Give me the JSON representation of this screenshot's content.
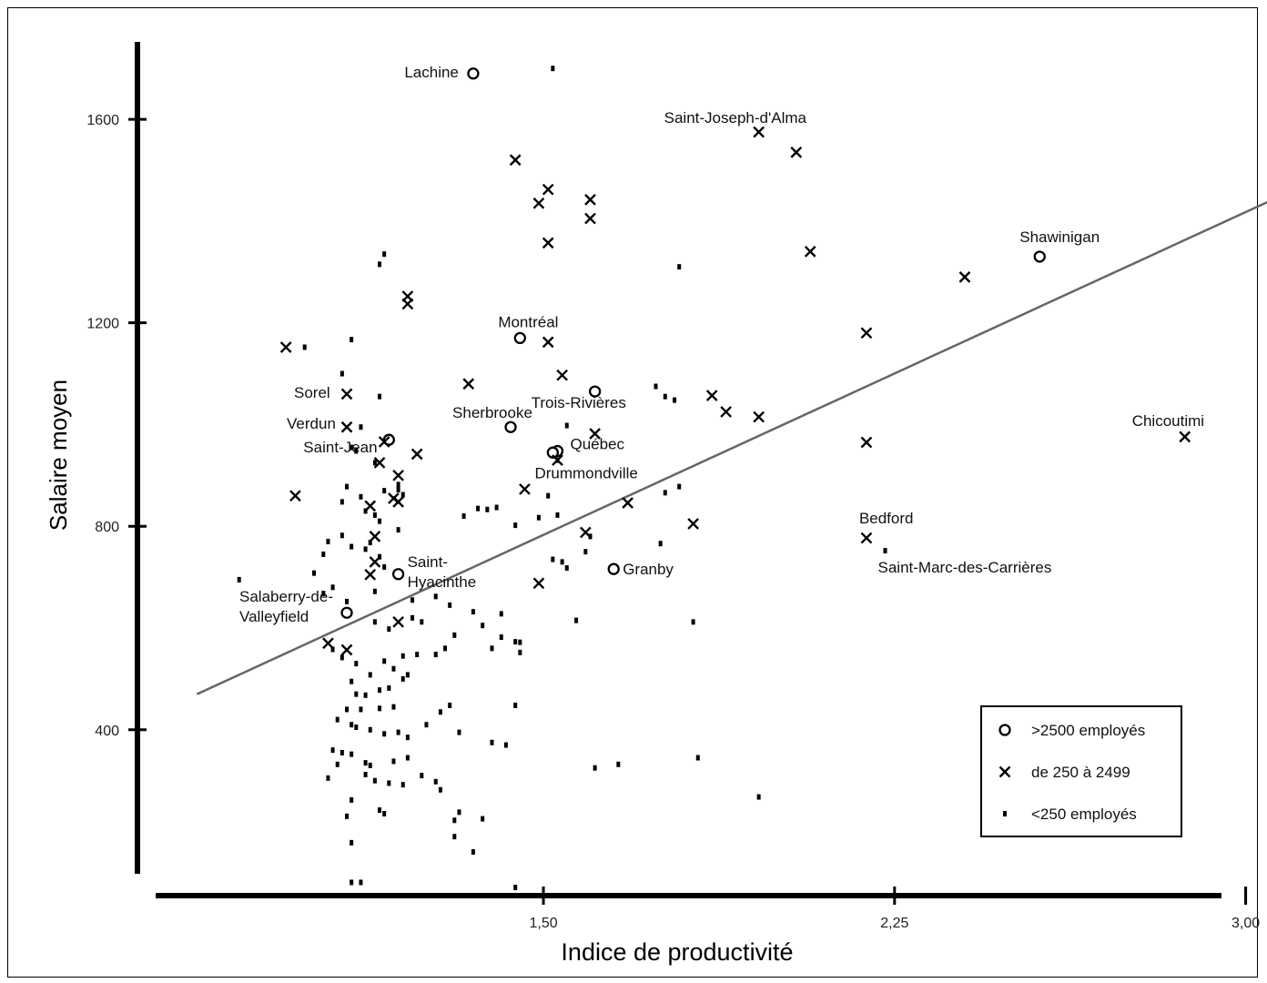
{
  "chart_data": {
    "type": "scatter",
    "xlabel": "Indice de productivité",
    "ylabel": "Salaire moyen",
    "xlim": [
      0.8,
      3.1
    ],
    "ylim": [
      40,
      1720
    ],
    "x_ticks": [
      {
        "value": 1.5,
        "label": "1,50"
      },
      {
        "value": 2.25,
        "label": "2,25"
      },
      {
        "value": 3.0,
        "label": "3,00"
      }
    ],
    "y_ticks": [
      {
        "value": 400,
        "label": "400"
      },
      {
        "value": 800,
        "label": "800"
      },
      {
        "value": 1200,
        "label": "1200"
      },
      {
        "value": 1600,
        "label": "1600"
      }
    ],
    "trend_line": {
      "x": [
        0.76,
        3.1
      ],
      "y": [
        470,
        1460
      ]
    },
    "legend": [
      {
        "marker": "circle",
        "label": ">2500 employés"
      },
      {
        "marker": "cross",
        "label": "de 250 à 2499"
      },
      {
        "marker": "dot",
        "label": "<250 employés"
      }
    ],
    "series": [
      {
        "name": ">2500 employés",
        "marker": "circle",
        "points": [
          {
            "x": 1.35,
            "y": 1690,
            "label": "Lachine"
          },
          {
            "x": 1.45,
            "y": 1170,
            "label": "Montréal"
          },
          {
            "x": 1.61,
            "y": 1065,
            "label": "Trois-Rivières"
          },
          {
            "x": 1.43,
            "y": 995,
            "label": "Sherbrooke"
          },
          {
            "x": 1.17,
            "y": 970,
            "label": "Saint-Jean"
          },
          {
            "x": 1.53,
            "y": 948,
            "label": "Québec"
          },
          {
            "x": 1.52,
            "y": 945,
            "label": ""
          },
          {
            "x": 1.19,
            "y": 706,
            "label": "Saint-Hyacinthe"
          },
          {
            "x": 1.65,
            "y": 716,
            "label": "Granby"
          },
          {
            "x": 1.08,
            "y": 630,
            "label": "Salaberry-de-Valleyfield"
          },
          {
            "x": 2.56,
            "y": 1330,
            "label": "Shawinigan"
          }
        ]
      },
      {
        "name": "de 250 à 2499",
        "marker": "cross",
        "points": [
          {
            "x": 1.96,
            "y": 1575,
            "label": "Saint-Joseph-d'Alma"
          },
          {
            "x": 2.04,
            "y": 1535,
            "label": ""
          },
          {
            "x": 1.44,
            "y": 1520,
            "label": ""
          },
          {
            "x": 1.51,
            "y": 1462,
            "label": ""
          },
          {
            "x": 1.49,
            "y": 1435,
            "label": ""
          },
          {
            "x": 1.6,
            "y": 1442,
            "label": ""
          },
          {
            "x": 1.6,
            "y": 1405,
            "label": ""
          },
          {
            "x": 1.51,
            "y": 1357,
            "label": ""
          },
          {
            "x": 2.07,
            "y": 1340,
            "label": ""
          },
          {
            "x": 2.4,
            "y": 1290,
            "label": ""
          },
          {
            "x": 1.21,
            "y": 1252,
            "label": ""
          },
          {
            "x": 1.21,
            "y": 1237,
            "label": ""
          },
          {
            "x": 2.19,
            "y": 1180,
            "label": ""
          },
          {
            "x": 1.51,
            "y": 1162,
            "label": ""
          },
          {
            "x": 0.95,
            "y": 1152,
            "label": ""
          },
          {
            "x": 1.54,
            "y": 1097,
            "label": ""
          },
          {
            "x": 1.34,
            "y": 1080,
            "label": ""
          },
          {
            "x": 1.08,
            "y": 1060,
            "label": "Sorel"
          },
          {
            "x": 1.86,
            "y": 1057,
            "label": ""
          },
          {
            "x": 1.89,
            "y": 1025,
            "label": ""
          },
          {
            "x": 1.96,
            "y": 1015,
            "label": ""
          },
          {
            "x": 1.08,
            "y": 995,
            "label": "Verdun"
          },
          {
            "x": 1.61,
            "y": 982,
            "label": ""
          },
          {
            "x": 1.16,
            "y": 966,
            "label": ""
          },
          {
            "x": 2.19,
            "y": 965,
            "label": ""
          },
          {
            "x": 2.87,
            "y": 976,
            "label": "Chicoutimi"
          },
          {
            "x": 1.23,
            "y": 942,
            "label": ""
          },
          {
            "x": 1.53,
            "y": 930,
            "label": "Drummondville"
          },
          {
            "x": 1.15,
            "y": 925,
            "label": ""
          },
          {
            "x": 1.19,
            "y": 900,
            "label": ""
          },
          {
            "x": 1.46,
            "y": 873,
            "label": ""
          },
          {
            "x": 0.97,
            "y": 860,
            "label": ""
          },
          {
            "x": 1.18,
            "y": 855,
            "label": ""
          },
          {
            "x": 1.19,
            "y": 848,
            "label": ""
          },
          {
            "x": 1.68,
            "y": 846,
            "label": ""
          },
          {
            "x": 1.13,
            "y": 840,
            "label": ""
          },
          {
            "x": 1.82,
            "y": 805,
            "label": ""
          },
          {
            "x": 1.59,
            "y": 788,
            "label": ""
          },
          {
            "x": 2.19,
            "y": 777,
            "label": "Bedford"
          },
          {
            "x": 1.14,
            "y": 780,
            "label": ""
          },
          {
            "x": 1.14,
            "y": 730,
            "label": ""
          },
          {
            "x": 1.13,
            "y": 705,
            "label": ""
          },
          {
            "x": 1.49,
            "y": 688,
            "label": ""
          },
          {
            "x": 1.19,
            "y": 612,
            "label": ""
          },
          {
            "x": 1.04,
            "y": 570,
            "label": ""
          },
          {
            "x": 1.08,
            "y": 557,
            "label": ""
          }
        ]
      },
      {
        "name": "<250 employés",
        "marker": "dot",
        "points": [
          {
            "x": 1.52,
            "y": 1700
          },
          {
            "x": 1.15,
            "y": 1315
          },
          {
            "x": 1.09,
            "y": 1167
          },
          {
            "x": 1.16,
            "y": 1335
          },
          {
            "x": 1.79,
            "y": 1310
          },
          {
            "x": 1.07,
            "y": 1100
          },
          {
            "x": 1.15,
            "y": 1055
          },
          {
            "x": 0.99,
            "y": 1152
          },
          {
            "x": 1.74,
            "y": 1075
          },
          {
            "x": 1.76,
            "y": 1055
          },
          {
            "x": 1.78,
            "y": 1048
          },
          {
            "x": 1.11,
            "y": 995
          },
          {
            "x": 1.55,
            "y": 998
          },
          {
            "x": 1.09,
            "y": 955
          },
          {
            "x": 1.14,
            "y": 925
          },
          {
            "x": 1.1,
            "y": 948
          },
          {
            "x": 1.53,
            "y": 930
          },
          {
            "x": 1.19,
            "y": 882
          },
          {
            "x": 1.08,
            "y": 878
          },
          {
            "x": 1.79,
            "y": 878
          },
          {
            "x": 1.76,
            "y": 866
          },
          {
            "x": 1.51,
            "y": 860
          },
          {
            "x": 1.19,
            "y": 872
          },
          {
            "x": 1.16,
            "y": 870
          },
          {
            "x": 1.2,
            "y": 862
          },
          {
            "x": 1.36,
            "y": 835
          },
          {
            "x": 1.38,
            "y": 833
          },
          {
            "x": 1.4,
            "y": 837
          },
          {
            "x": 1.33,
            "y": 820
          },
          {
            "x": 1.49,
            "y": 817
          },
          {
            "x": 1.53,
            "y": 822
          },
          {
            "x": 1.44,
            "y": 802
          },
          {
            "x": 1.14,
            "y": 822
          },
          {
            "x": 1.07,
            "y": 848
          },
          {
            "x": 1.11,
            "y": 858
          },
          {
            "x": 1.12,
            "y": 830
          },
          {
            "x": 1.15,
            "y": 810
          },
          {
            "x": 1.19,
            "y": 793
          },
          {
            "x": 1.04,
            "y": 770
          },
          {
            "x": 1.07,
            "y": 782
          },
          {
            "x": 1.09,
            "y": 760
          },
          {
            "x": 1.12,
            "y": 755
          },
          {
            "x": 1.13,
            "y": 768
          },
          {
            "x": 1.15,
            "y": 740
          },
          {
            "x": 1.16,
            "y": 720
          },
          {
            "x": 1.03,
            "y": 745
          },
          {
            "x": 1.01,
            "y": 708
          },
          {
            "x": 0.85,
            "y": 695
          },
          {
            "x": 1.03,
            "y": 668
          },
          {
            "x": 1.05,
            "y": 680
          },
          {
            "x": 1.08,
            "y": 652
          },
          {
            "x": 1.14,
            "y": 672
          },
          {
            "x": 1.22,
            "y": 655
          },
          {
            "x": 1.27,
            "y": 662
          },
          {
            "x": 1.3,
            "y": 645
          },
          {
            "x": 1.35,
            "y": 632
          },
          {
            "x": 1.52,
            "y": 735
          },
          {
            "x": 1.54,
            "y": 730
          },
          {
            "x": 1.55,
            "y": 718
          },
          {
            "x": 1.59,
            "y": 750
          },
          {
            "x": 1.75,
            "y": 766
          },
          {
            "x": 1.6,
            "y": 780
          },
          {
            "x": 1.14,
            "y": 612
          },
          {
            "x": 1.17,
            "y": 598
          },
          {
            "x": 1.22,
            "y": 620
          },
          {
            "x": 1.24,
            "y": 612
          },
          {
            "x": 1.37,
            "y": 605
          },
          {
            "x": 1.41,
            "y": 582
          },
          {
            "x": 1.44,
            "y": 573
          },
          {
            "x": 1.45,
            "y": 552
          },
          {
            "x": 1.39,
            "y": 560
          },
          {
            "x": 1.31,
            "y": 586
          },
          {
            "x": 1.29,
            "y": 560
          },
          {
            "x": 1.27,
            "y": 548
          },
          {
            "x": 1.23,
            "y": 548
          },
          {
            "x": 1.2,
            "y": 545
          },
          {
            "x": 1.05,
            "y": 558
          },
          {
            "x": 1.07,
            "y": 542
          },
          {
            "x": 1.1,
            "y": 530
          },
          {
            "x": 1.13,
            "y": 508
          },
          {
            "x": 1.16,
            "y": 535
          },
          {
            "x": 1.18,
            "y": 520
          },
          {
            "x": 1.21,
            "y": 508
          },
          {
            "x": 1.2,
            "y": 500
          },
          {
            "x": 1.09,
            "y": 495
          },
          {
            "x": 1.1,
            "y": 470
          },
          {
            "x": 1.12,
            "y": 468
          },
          {
            "x": 1.15,
            "y": 478
          },
          {
            "x": 1.17,
            "y": 482
          },
          {
            "x": 1.44,
            "y": 448
          },
          {
            "x": 1.28,
            "y": 435
          },
          {
            "x": 1.3,
            "y": 448
          },
          {
            "x": 1.18,
            "y": 445
          },
          {
            "x": 1.15,
            "y": 442
          },
          {
            "x": 1.11,
            "y": 440
          },
          {
            "x": 1.08,
            "y": 440
          },
          {
            "x": 1.06,
            "y": 420
          },
          {
            "x": 1.09,
            "y": 410
          },
          {
            "x": 1.1,
            "y": 405
          },
          {
            "x": 1.13,
            "y": 400
          },
          {
            "x": 1.16,
            "y": 392
          },
          {
            "x": 1.19,
            "y": 395
          },
          {
            "x": 1.21,
            "y": 385
          },
          {
            "x": 1.25,
            "y": 410
          },
          {
            "x": 1.32,
            "y": 395
          },
          {
            "x": 1.39,
            "y": 375
          },
          {
            "x": 1.42,
            "y": 370
          },
          {
            "x": 1.05,
            "y": 360
          },
          {
            "x": 1.07,
            "y": 355
          },
          {
            "x": 1.09,
            "y": 352
          },
          {
            "x": 1.12,
            "y": 335
          },
          {
            "x": 1.13,
            "y": 330
          },
          {
            "x": 1.18,
            "y": 338
          },
          {
            "x": 1.21,
            "y": 345
          },
          {
            "x": 1.06,
            "y": 332
          },
          {
            "x": 1.04,
            "y": 305
          },
          {
            "x": 1.12,
            "y": 312
          },
          {
            "x": 1.14,
            "y": 300
          },
          {
            "x": 1.17,
            "y": 295
          },
          {
            "x": 1.2,
            "y": 292
          },
          {
            "x": 1.27,
            "y": 298
          },
          {
            "x": 1.28,
            "y": 282
          },
          {
            "x": 1.24,
            "y": 310
          },
          {
            "x": 1.09,
            "y": 262
          },
          {
            "x": 1.32,
            "y": 238
          },
          {
            "x": 1.16,
            "y": 235
          },
          {
            "x": 1.15,
            "y": 242
          },
          {
            "x": 1.08,
            "y": 230
          },
          {
            "x": 1.31,
            "y": 222
          },
          {
            "x": 1.37,
            "y": 225
          },
          {
            "x": 1.31,
            "y": 190
          },
          {
            "x": 1.09,
            "y": 178
          },
          {
            "x": 1.35,
            "y": 160
          },
          {
            "x": 1.09,
            "y": 100
          },
          {
            "x": 1.11,
            "y": 100
          },
          {
            "x": 1.44,
            "y": 90
          },
          {
            "x": 1.66,
            "y": 332
          },
          {
            "x": 1.83,
            "y": 345
          },
          {
            "x": 1.96,
            "y": 268
          },
          {
            "x": 1.82,
            "y": 612
          },
          {
            "x": 2.23,
            "y": 752
          },
          {
            "x": 3.08,
            "y": 828
          },
          {
            "x": 1.41,
            "y": 628
          },
          {
            "x": 1.45,
            "y": 572
          },
          {
            "x": 1.57,
            "y": 615
          },
          {
            "x": 1.61,
            "y": 325
          }
        ]
      }
    ]
  }
}
